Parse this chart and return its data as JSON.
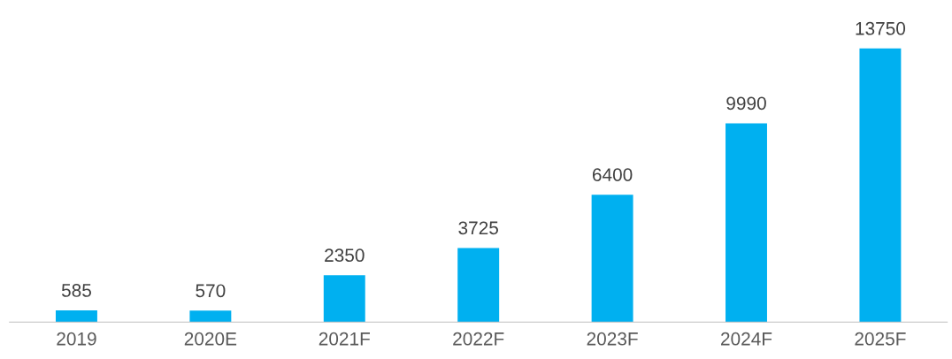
{
  "chart_data": {
    "type": "bar",
    "categories": [
      "2019",
      "2020E",
      "2021F",
      "2022F",
      "2023F",
      "2024F",
      "2025F"
    ],
    "values": [
      585,
      570,
      2350,
      3725,
      6400,
      9990,
      13750
    ],
    "color": "#00b0f0",
    "data_labels": true,
    "grid": false,
    "legend": false
  }
}
